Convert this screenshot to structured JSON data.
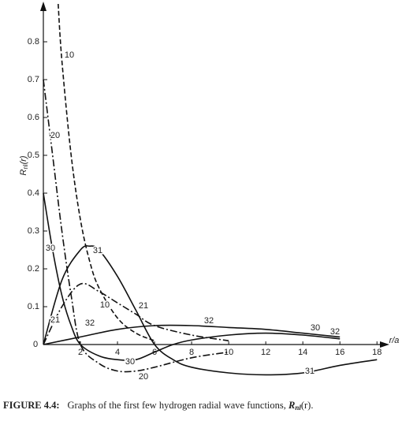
{
  "chart_data": {
    "type": "line",
    "y_label": "R",
    "y_label_sub": "nl",
    "y_label_end": "(r)",
    "x_label": "r/a",
    "caption_label": "FIGURE 4.4:",
    "caption_text": "Graphs of the first few hydrogen radial wave functions, ",
    "caption_var": "R",
    "caption_sub": "nl",
    "caption_end": "(r).",
    "xlim": [
      0,
      18.5
    ],
    "ylim": [
      -0.1,
      0.9
    ],
    "xticks": [
      0,
      2,
      4,
      6,
      8,
      10,
      12,
      14,
      16,
      18
    ],
    "yticks": [
      0.1,
      0.2,
      0.3,
      0.4,
      0.5,
      0.6,
      0.7,
      0.8
    ],
    "series": [
      {
        "name": "10",
        "style": "dashed",
        "color": "#111",
        "x": [
          0.8,
          1,
          1.5,
          2,
          2.5,
          3,
          4,
          5,
          6
        ],
        "values": [
          0.9,
          0.75,
          0.5,
          0.33,
          0.22,
          0.15,
          0.07,
          0.03,
          0.01
        ]
      },
      {
        "name": "20",
        "style": "dashdot",
        "color": "#111",
        "x": [
          0,
          0.5,
          1,
          1.5,
          2,
          3,
          4,
          5,
          6,
          8,
          10
        ],
        "values": [
          0.7,
          0.5,
          0.3,
          0.13,
          0,
          -0.05,
          -0.07,
          -0.07,
          -0.06,
          -0.035,
          -0.02
        ]
      },
      {
        "name": "21",
        "style": "dashdot",
        "color": "#111",
        "x": [
          0,
          1,
          2,
          3,
          4,
          5,
          6,
          8,
          10
        ],
        "values": [
          0,
          0.1,
          0.16,
          0.14,
          0.11,
          0.08,
          0.05,
          0.025,
          0.01
        ]
      },
      {
        "name": "30",
        "style": "solid",
        "color": "#111",
        "x": [
          0,
          0.5,
          1,
          1.5,
          2,
          3,
          4,
          5,
          6,
          7,
          8,
          10,
          12,
          14,
          16
        ],
        "values": [
          0.4,
          0.25,
          0.13,
          0.05,
          0,
          -0.03,
          -0.04,
          -0.04,
          -0.02,
          0,
          0.012,
          0.025,
          0.03,
          0.025,
          0.015
        ]
      },
      {
        "name": "31",
        "style": "solid",
        "color": "#111",
        "x": [
          0,
          1,
          2,
          2.5,
          3,
          4,
          5,
          6,
          7,
          8,
          10,
          12,
          14,
          16,
          18
        ],
        "values": [
          0,
          0.17,
          0.25,
          0.26,
          0.25,
          0.18,
          0.09,
          0,
          -0.04,
          -0.06,
          -0.075,
          -0.08,
          -0.075,
          -0.055,
          -0.04
        ]
      },
      {
        "name": "32",
        "style": "solid",
        "color": "#111",
        "x": [
          0,
          2,
          4,
          6,
          8,
          10,
          12,
          14,
          16
        ],
        "values": [
          0,
          0.02,
          0.04,
          0.05,
          0.05,
          0.045,
          0.04,
          0.03,
          0.02
        ]
      }
    ]
  }
}
